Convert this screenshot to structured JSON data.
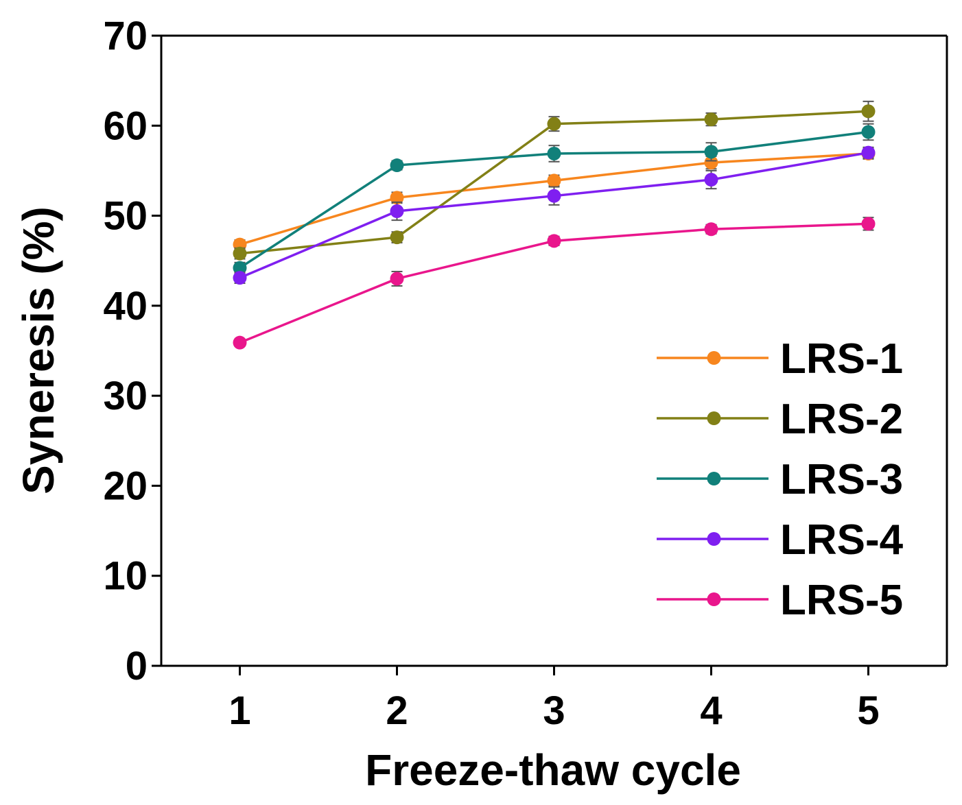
{
  "chart_data": {
    "type": "line",
    "title": "",
    "xlabel": "Freeze-thaw cycle",
    "ylabel": "Syneresis (%)",
    "x": [
      1,
      2,
      3,
      4,
      5
    ],
    "x_ticks": [
      "1",
      "2",
      "3",
      "4",
      "5"
    ],
    "xlim": [
      0.5,
      5.5
    ],
    "ylim": [
      0,
      70
    ],
    "y_ticks": [
      "0",
      "10",
      "20",
      "30",
      "40",
      "50",
      "60",
      "70"
    ],
    "grid": false,
    "legend_position": "bottom-right",
    "series": [
      {
        "name": "LRS-1",
        "color": "#f7861e",
        "values": [
          46.8,
          52.0,
          53.9,
          55.9,
          56.9
        ],
        "errors": [
          0.5,
          0.6,
          0.6,
          0.7,
          0.6
        ]
      },
      {
        "name": "LRS-2",
        "color": "#828016",
        "values": [
          45.8,
          47.6,
          60.2,
          60.7,
          61.6
        ],
        "errors": [
          0.6,
          0.6,
          0.8,
          0.7,
          1.1
        ]
      },
      {
        "name": "LRS-3",
        "color": "#11807a",
        "values": [
          44.2,
          55.6,
          56.9,
          57.1,
          59.3
        ],
        "errors": [
          0.6,
          0.5,
          0.9,
          1.0,
          0.9
        ]
      },
      {
        "name": "LRS-4",
        "color": "#7f1ff0",
        "values": [
          43.1,
          50.5,
          52.2,
          54.0,
          57.0
        ],
        "errors": [
          0.6,
          1.0,
          1.0,
          1.0,
          0.6
        ]
      },
      {
        "name": "LRS-5",
        "color": "#e9168c",
        "values": [
          35.9,
          43.0,
          47.2,
          48.5,
          49.1
        ],
        "errors": [
          0.4,
          0.8,
          0.5,
          0.5,
          0.7
        ]
      }
    ]
  }
}
